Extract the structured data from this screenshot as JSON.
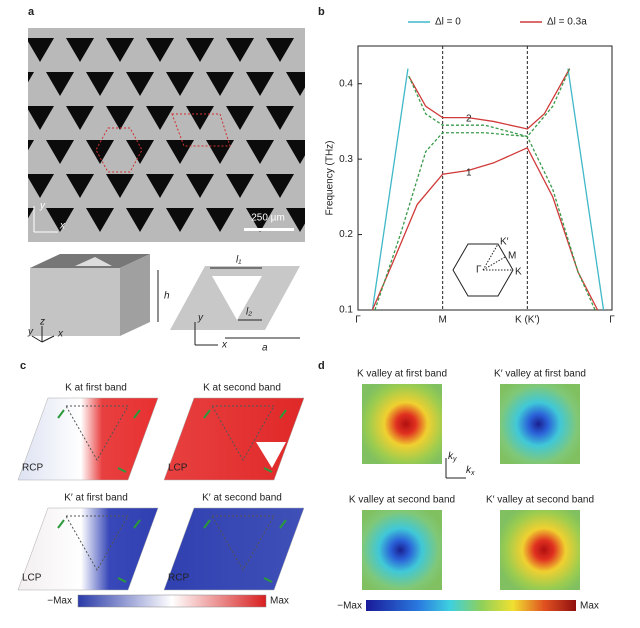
{
  "panel_labels": [
    "a",
    "b",
    "c",
    "d"
  ],
  "panel_a": {
    "scale_bar": "250 µm",
    "image_axes": [
      "y",
      "x"
    ],
    "box_axes": [
      "z",
      "y",
      "x"
    ],
    "box_height": "h",
    "cell_labels": [
      "l₁",
      "l₂",
      "a"
    ],
    "cell_axes": [
      "y",
      "x"
    ]
  },
  "chart_data": {
    "type": "line",
    "y_label": "Frequency (THz)",
    "xlim": [
      0,
      3
    ],
    "xticks": [
      {
        "value": 0,
        "label": "Γ"
      },
      {
        "value": 1,
        "label": "M"
      },
      {
        "value": 2,
        "label": "K (K′)"
      },
      {
        "value": 3,
        "label": "Γ"
      }
    ],
    "ylim": [
      0.1,
      0.45
    ],
    "yticks": [
      0.1,
      0.2,
      0.3,
      0.4
    ],
    "xgrid_dashed": true,
    "series": [
      {
        "name": "Δl = 0",
        "color": "#3fb8c8",
        "x": [
          0.17,
          0.59,
          null,
          2.48,
          2.9
        ],
        "values": [
          0.1,
          0.42,
          null,
          0.42,
          0.1
        ]
      },
      {
        "name": "Δl = 0.3a",
        "color": "#d03a3a",
        "x": [
          0.17,
          0.4,
          0.7,
          1.0,
          1.3,
          1.6,
          2.0,
          2.3,
          2.6,
          2.83,
          null,
          0.6,
          0.8,
          1.0,
          1.3,
          1.6,
          2.0,
          2.2,
          2.5
        ],
        "values": [
          0.1,
          0.16,
          0.24,
          0.28,
          0.285,
          0.295,
          0.315,
          0.25,
          0.15,
          0.1,
          null,
          0.41,
          0.37,
          0.355,
          0.355,
          0.35,
          0.34,
          0.36,
          0.42
        ]
      },
      {
        "color": "#3a9a4a",
        "dashed": true,
        "x": [
          0.2,
          0.5,
          0.8,
          1.0,
          1.5,
          2.0,
          2.3,
          2.6,
          2.8,
          null,
          0.6,
          0.8,
          1.0,
          1.5,
          2.0,
          2.3,
          2.5
        ],
        "values": [
          0.1,
          0.2,
          0.31,
          0.335,
          0.335,
          0.33,
          0.26,
          0.15,
          0.1,
          null,
          0.41,
          0.36,
          0.345,
          0.345,
          0.33,
          0.37,
          0.42
        ]
      }
    ],
    "annotations": [
      "1",
      "2"
    ],
    "inset_labels": [
      "K′",
      "M",
      "K",
      "Γ"
    ]
  },
  "panel_c": {
    "titles": [
      "K at first band",
      "K at second band",
      "K′ at first band",
      "K′ at second band"
    ],
    "polarizations": [
      "RCP",
      "LCP",
      "LCP",
      "RCP"
    ],
    "colorbar": [
      "−Max",
      "Max"
    ]
  },
  "panel_d": {
    "titles": [
      "K valley at first band",
      "K′ valley at first band",
      "K valley at second band",
      "K′ valley at second band"
    ],
    "axes": [
      {
        "main": "k",
        "sub": "y"
      },
      {
        "main": "k",
        "sub": "x"
      }
    ],
    "colorbar": [
      "−Max",
      "Max"
    ]
  }
}
